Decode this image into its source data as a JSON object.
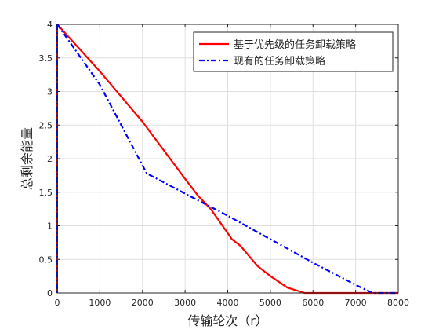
{
  "chart_data": {
    "type": "line",
    "xlabel": "传输轮次（r）",
    "ylabel": "总剩余能量",
    "xlim": [
      0,
      8000
    ],
    "ylim": [
      0,
      4
    ],
    "xticks": [
      0,
      1000,
      2000,
      3000,
      4000,
      5000,
      6000,
      7000,
      8000
    ],
    "yticks": [
      0,
      0.5,
      1,
      1.5,
      2,
      2.5,
      3,
      3.5,
      4
    ],
    "grid": true,
    "legend_position": "top-right",
    "series": [
      {
        "name": "基于优先级的任务卸载策略",
        "color": "#ff0000",
        "line_style": "solid",
        "points": [
          [
            0,
            4
          ],
          [
            1000,
            3.3
          ],
          [
            2000,
            2.55
          ],
          [
            3000,
            1.7
          ],
          [
            3300,
            1.45
          ],
          [
            3600,
            1.25
          ],
          [
            3900,
            0.98
          ],
          [
            4100,
            0.8
          ],
          [
            4300,
            0.7
          ],
          [
            4700,
            0.4
          ],
          [
            5000,
            0.25
          ],
          [
            5400,
            0.08
          ],
          [
            5800,
            0
          ],
          [
            8000,
            0
          ]
        ]
      },
      {
        "name": "现有的任务卸载策略",
        "color": "#0000ff",
        "line_style": "dash-dot",
        "points": [
          [
            0,
            4
          ],
          [
            1000,
            3.1
          ],
          [
            2100,
            1.78
          ],
          [
            3000,
            1.48
          ],
          [
            4000,
            1.15
          ],
          [
            5000,
            0.8
          ],
          [
            6000,
            0.45
          ],
          [
            7000,
            0.12
          ],
          [
            7400,
            0
          ],
          [
            8000,
            0
          ]
        ]
      }
    ]
  }
}
